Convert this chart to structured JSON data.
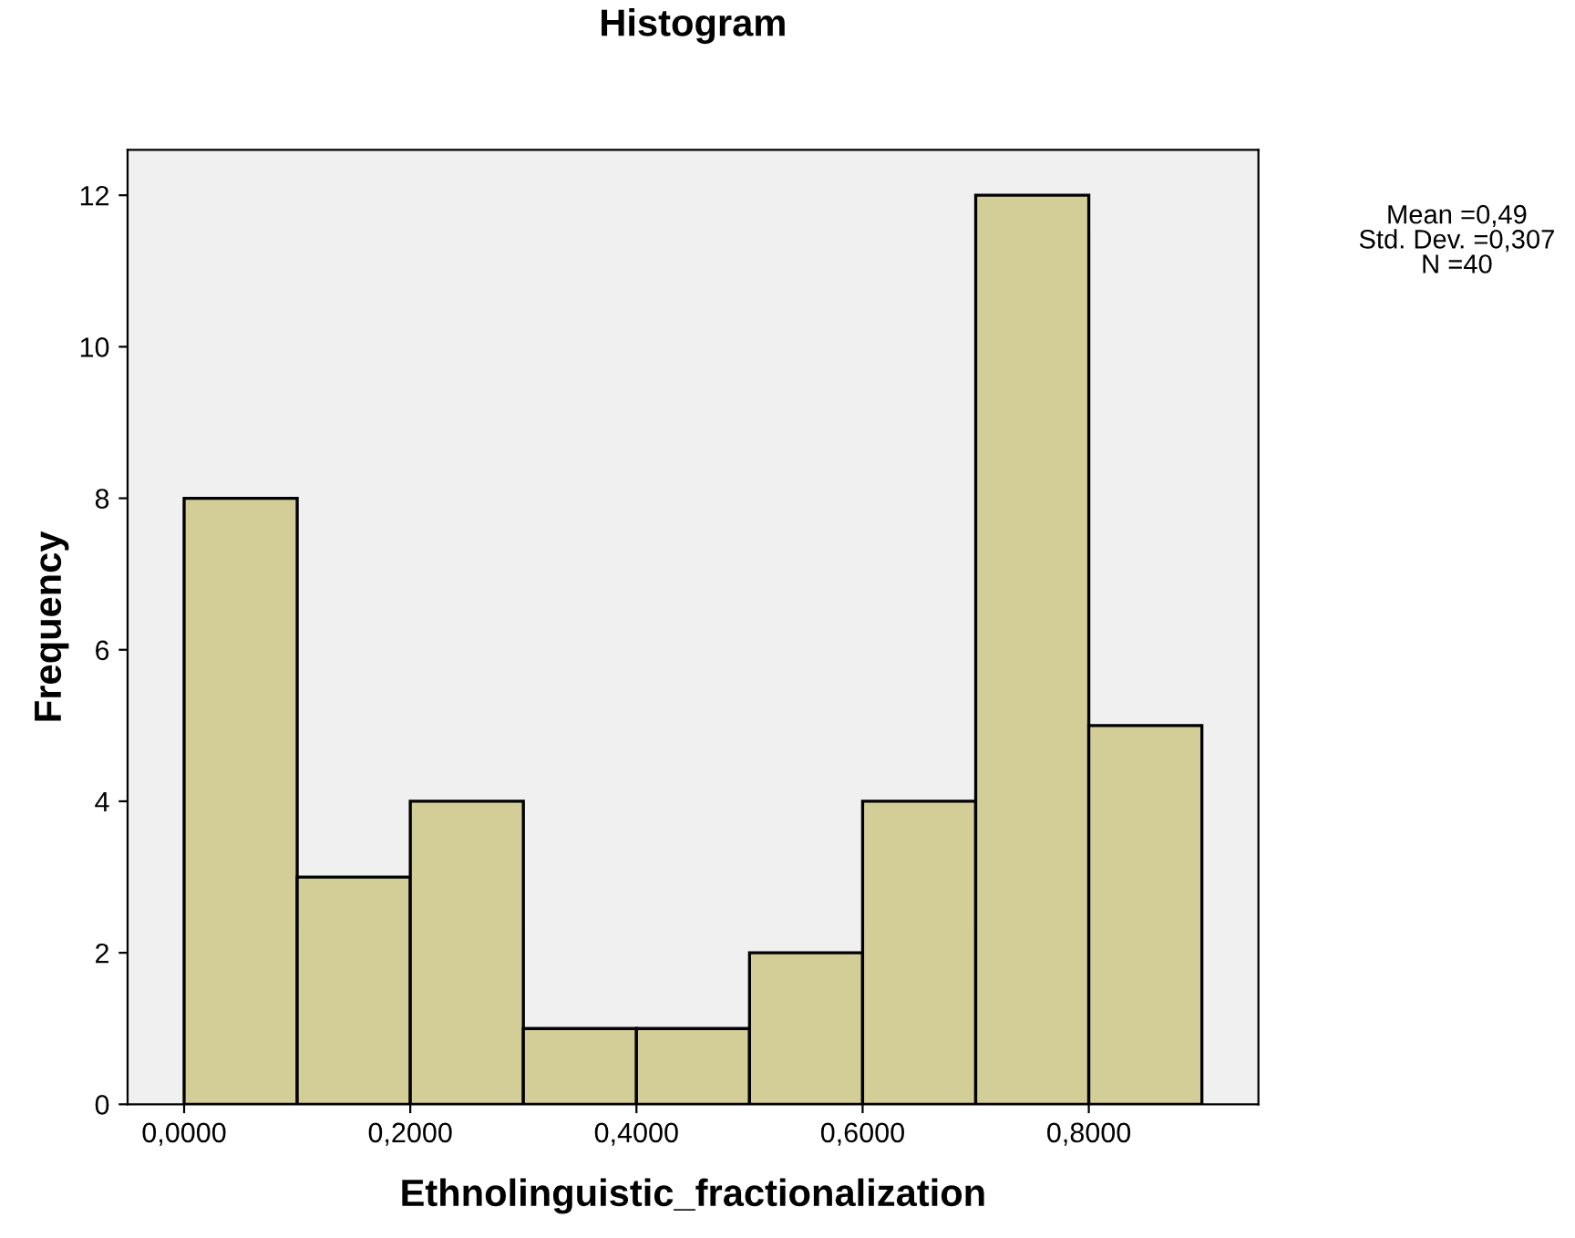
{
  "chart_data": {
    "type": "histogram",
    "title": "Histogram",
    "xlabel": "Ethnolinguistic_fractionalization",
    "ylabel": "Frequency",
    "bins": [
      0,
      0.1,
      0.2,
      0.3,
      0.4,
      0.5,
      0.6,
      0.7,
      0.8,
      0.9
    ],
    "values": [
      8,
      3,
      4,
      1,
      1,
      2,
      4,
      12,
      5
    ],
    "color": "#d3ce97",
    "xlim": [
      -0.05,
      0.95
    ],
    "xticks": [
      {
        "value": 0,
        "label": "0,0000"
      },
      {
        "value": 0.2,
        "label": "0,2000"
      },
      {
        "value": 0.4,
        "label": "0,4000"
      },
      {
        "value": 0.6,
        "label": "0,6000"
      },
      {
        "value": 0.8,
        "label": "0,8000"
      }
    ],
    "ylim": [
      0,
      12.6
    ],
    "yticks": [
      0,
      2,
      4,
      6,
      8,
      10,
      12
    ],
    "annotations": [
      "Mean =0,49\nStd. Dev. =0,307\nN =40"
    ]
  }
}
